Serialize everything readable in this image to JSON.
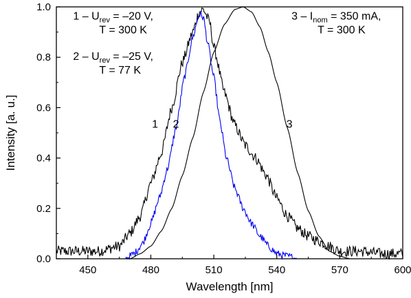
{
  "chart_data": {
    "type": "line",
    "title": "",
    "xlabel": "Wavelength [nm]",
    "ylabel": "Intensity [a. u.]",
    "xlim": [
      435,
      600
    ],
    "ylim": [
      0,
      1.0
    ],
    "xticks": [
      450,
      480,
      510,
      540,
      570,
      600
    ],
    "xtick_labels": [
      "450",
      "480",
      "510",
      "540",
      "570",
      "600"
    ],
    "yticks": [
      0.0,
      0.2,
      0.4,
      0.6,
      0.8,
      1.0
    ],
    "ytick_labels": [
      "0.0",
      "0.2",
      "0.4",
      "0.6",
      "0.8",
      "1.0"
    ],
    "grid": false,
    "series": [
      {
        "name": "1",
        "color": "#000000",
        "x": [
          435,
          445,
          455,
          465,
          470,
          475,
          480,
          485,
          490,
          495,
          500,
          503,
          505,
          508,
          510,
          515,
          520,
          525,
          530,
          535,
          540,
          545,
          550,
          555,
          560,
          565,
          570,
          580,
          590,
          600
        ],
        "y": [
          0.03,
          0.03,
          0.03,
          0.05,
          0.1,
          0.17,
          0.3,
          0.42,
          0.6,
          0.78,
          0.9,
          0.98,
          0.99,
          0.94,
          0.84,
          0.66,
          0.53,
          0.45,
          0.4,
          0.33,
          0.24,
          0.17,
          0.12,
          0.09,
          0.07,
          0.05,
          0.03,
          0.03,
          0.02,
          0.02
        ],
        "noise": 0.022
      },
      {
        "name": "2",
        "color": "#0000ee",
        "x": [
          468,
          472,
          476,
          480,
          484,
          488,
          492,
          496,
          500,
          503,
          505,
          507,
          510,
          513,
          516,
          520,
          524,
          528,
          532,
          536,
          540,
          545,
          550
        ],
        "y": [
          0.0,
          0.02,
          0.06,
          0.14,
          0.24,
          0.36,
          0.52,
          0.72,
          0.88,
          0.97,
          0.96,
          0.86,
          0.72,
          0.54,
          0.4,
          0.28,
          0.2,
          0.14,
          0.09,
          0.05,
          0.02,
          0.01,
          0.0
        ],
        "noise": 0.015
      },
      {
        "name": "3",
        "color": "#000000",
        "x": [
          470,
          475,
          480,
          485,
          490,
          495,
          500,
          505,
          510,
          515,
          520,
          524,
          528,
          532,
          536,
          540,
          545,
          550,
          555,
          560,
          565,
          570,
          575
        ],
        "y": [
          0.0,
          0.02,
          0.05,
          0.11,
          0.2,
          0.33,
          0.48,
          0.66,
          0.82,
          0.93,
          0.99,
          1.0,
          0.98,
          0.92,
          0.82,
          0.7,
          0.52,
          0.34,
          0.19,
          0.09,
          0.03,
          0.01,
          0.0
        ],
        "noise": 0
      }
    ],
    "curve_labels": [
      {
        "text": "1",
        "x": 482,
        "y": 0.52
      },
      {
        "text": "2",
        "x": 492,
        "y": 0.52
      },
      {
        "text": "3",
        "x": 546,
        "y": 0.52
      }
    ],
    "annotations": [
      {
        "prefix": "1 – U",
        "sub": "rev",
        "suffix": " = –20 V,",
        "line2": "T = 300 K",
        "x": 443,
        "y": 0.95
      },
      {
        "prefix": "2 – U",
        "sub": "rev",
        "suffix": " = –25 V,",
        "line2": "T = 77 K",
        "x": 443,
        "y": 0.79
      },
      {
        "prefix": "3 – I",
        "sub": "nom",
        "suffix": " = 350 mA,",
        "line2": "T = 300 K",
        "x": 547,
        "y": 0.95
      }
    ]
  }
}
